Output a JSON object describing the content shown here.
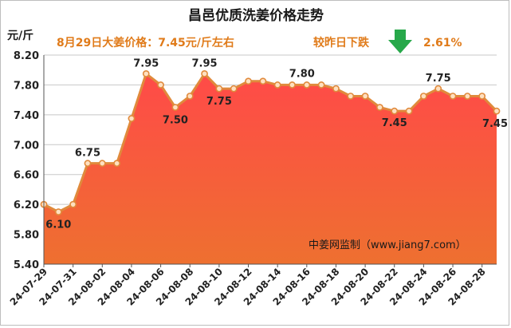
{
  "chart_data": {
    "type": "area",
    "title": "昌邑优质洗姜价格走势",
    "ylabel": "元/斤",
    "ylim": [
      5.4,
      8.2
    ],
    "yticks": [
      "8.20",
      "7.80",
      "7.40",
      "7.00",
      "6.60",
      "6.20",
      "5.80",
      "5.40"
    ],
    "grid": true,
    "x": [
      "24-07-29",
      "24-07-30",
      "24-07-31",
      "24-08-01",
      "24-08-02",
      "24-08-03",
      "24-08-04",
      "24-08-05",
      "24-08-06",
      "24-08-07",
      "24-08-08",
      "24-08-09",
      "24-08-10",
      "24-08-11",
      "24-08-12",
      "24-08-13",
      "24-08-14",
      "24-08-15",
      "24-08-16",
      "24-08-17",
      "24-08-18",
      "24-08-19",
      "24-08-20",
      "24-08-21",
      "24-08-22",
      "24-08-23",
      "24-08-24",
      "24-08-25",
      "24-08-26",
      "24-08-27",
      "24-08-28",
      "24-08-29"
    ],
    "x_tick_labels": [
      "24-07-29",
      "24-07-31",
      "24-08-02",
      "24-08-04",
      "24-08-06",
      "24-08-08",
      "24-08-10",
      "24-08-12",
      "24-08-14",
      "24-08-16",
      "24-08-18",
      "24-08-20",
      "24-08-22",
      "24-08-24",
      "24-08-26",
      "24-08-28"
    ],
    "values": [
      6.2,
      6.1,
      6.2,
      6.75,
      6.75,
      6.75,
      7.35,
      7.95,
      7.8,
      7.5,
      7.65,
      7.95,
      7.75,
      7.75,
      7.85,
      7.85,
      7.8,
      7.8,
      7.8,
      7.8,
      7.75,
      7.65,
      7.65,
      7.5,
      7.45,
      7.45,
      7.65,
      7.75,
      7.65,
      7.65,
      7.65,
      7.45
    ],
    "data_labels": [
      {
        "index": 1,
        "text": "6.10"
      },
      {
        "index": 3,
        "text": "6.75"
      },
      {
        "index": 7,
        "text": "7.95"
      },
      {
        "index": 9,
        "text": "7.50"
      },
      {
        "index": 11,
        "text": "7.95"
      },
      {
        "index": 12,
        "text": "7.75"
      },
      {
        "index": 18,
        "text": "7.80"
      },
      {
        "index": 24,
        "text": "7.45"
      },
      {
        "index": 27,
        "text": "7.75"
      },
      {
        "index": 31,
        "text": "7.45"
      }
    ],
    "annotations": {
      "price_note": "8月29日大姜价格：7.45元/斤左右",
      "change_note": "较昨日下跌",
      "change_value": "2.61%",
      "source": "中姜网监制（www.jiang7.com）"
    },
    "colors": {
      "line": "#e08a3c",
      "marker_fill": "#ffe0c0",
      "area_top": "#ff4a48",
      "area_bottom": "#ee7030",
      "arrow": "#27a84a",
      "grid": "#c8c8c8",
      "note": "#e07b1a"
    }
  }
}
